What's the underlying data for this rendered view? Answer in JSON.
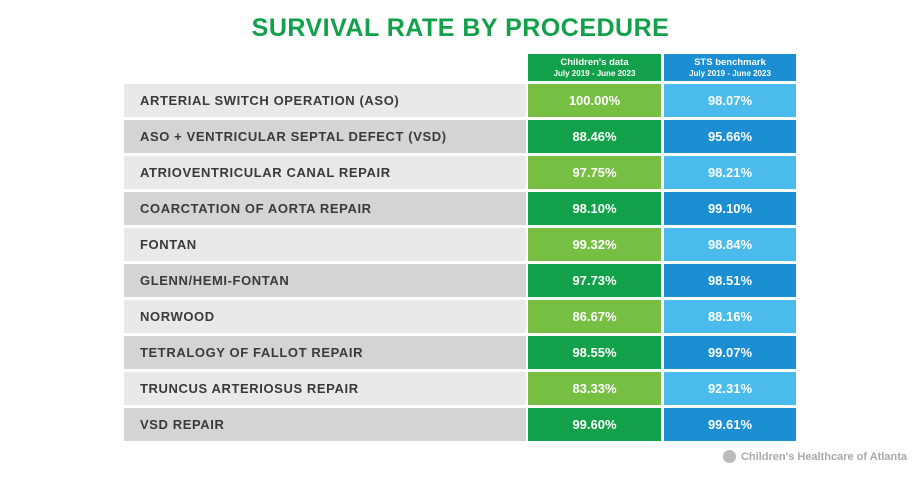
{
  "title": "SURVIVAL RATE BY PROCEDURE",
  "columns": {
    "childrens": {
      "label": "Children's data",
      "period": "July 2019 - June 2023"
    },
    "sts": {
      "label": "STS benchmark",
      "period": "July 2019 - June 2023"
    }
  },
  "rows": [
    {
      "procedure": "ARTERIAL SWITCH OPERATION (ASO)",
      "childrens": "100.00%",
      "sts": "98.07%"
    },
    {
      "procedure": "ASO + VENTRICULAR SEPTAL DEFECT (VSD)",
      "childrens": "88.46%",
      "sts": "95.66%"
    },
    {
      "procedure": "ATRIOVENTRICULAR CANAL REPAIR",
      "childrens": "97.75%",
      "sts": "98.21%"
    },
    {
      "procedure": "COARCTATION OF AORTA REPAIR",
      "childrens": "98.10%",
      "sts": "99.10%"
    },
    {
      "procedure": "FONTAN",
      "childrens": "99.32%",
      "sts": "98.84%"
    },
    {
      "procedure": "GLENN/HEMI-FONTAN",
      "childrens": "97.73%",
      "sts": "98.51%"
    },
    {
      "procedure": "NORWOOD",
      "childrens": "86.67%",
      "sts": "88.16%"
    },
    {
      "procedure": "TETRALOGY OF FALLOT REPAIR",
      "childrens": "98.55%",
      "sts": "99.07%"
    },
    {
      "procedure": "TRUNCUS ARTERIOSUS REPAIR",
      "childrens": "83.33%",
      "sts": "92.31%"
    },
    {
      "procedure": "VSD REPAIR",
      "childrens": "99.60%",
      "sts": "99.61%"
    }
  ],
  "footer": {
    "brand": "Children's Healthcare of Atlanta"
  },
  "colors": {
    "title_green": "#13a04a",
    "green_dark": "#13a04a",
    "green_light": "#77bf43",
    "blue_dark": "#1b8fd2",
    "blue_light": "#4bbbec",
    "gray_light": "#e9e9ea",
    "gray_dark": "#d3d4d6"
  },
  "chart_data": {
    "type": "table",
    "title": "SURVIVAL RATE BY PROCEDURE",
    "columns": [
      "Children's data July 2019 - June 2023",
      "STS benchmark July 2019 - June 2023"
    ],
    "categories": [
      "ARTERIAL SWITCH OPERATION (ASO)",
      "ASO + VENTRICULAR SEPTAL DEFECT (VSD)",
      "ATRIOVENTRICULAR CANAL REPAIR",
      "COARCTATION OF AORTA REPAIR",
      "FONTAN",
      "GLENN/HEMI-FONTAN",
      "NORWOOD",
      "TETRALOGY OF FALLOT REPAIR",
      "TRUNCUS ARTERIOSUS REPAIR",
      "VSD REPAIR"
    ],
    "series": [
      {
        "name": "Children's data",
        "values": [
          100.0,
          88.46,
          97.75,
          98.1,
          99.32,
          97.73,
          86.67,
          98.55,
          83.33,
          99.6
        ]
      },
      {
        "name": "STS benchmark",
        "values": [
          98.07,
          95.66,
          98.21,
          99.1,
          98.84,
          98.51,
          88.16,
          99.07,
          92.31,
          99.61
        ]
      }
    ]
  }
}
